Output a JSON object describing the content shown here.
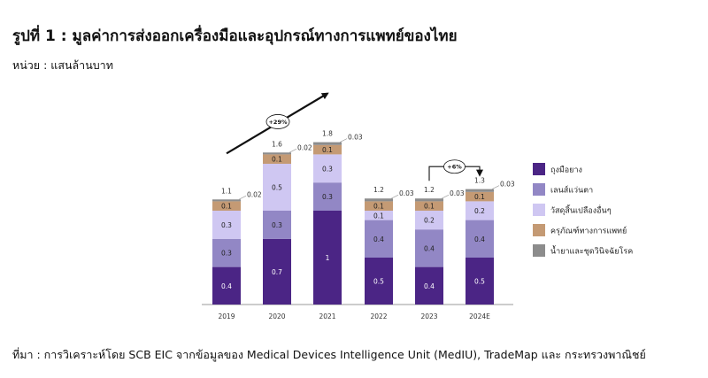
{
  "title": "รูปที่ 1 : มูลค่าการส่งออกเครื่องมือและอุปกรณ์ทางการแพทย์ของไทย",
  "unit_label": "หน่วย : แสนล้านบาท",
  "source": "ที่มา : การวิเคราะห์โดย SCB EIC จากข้อมูลของ Medical Devices Intelligence Unit (MedIU), TradeMap และ กระทรวงพาณิชย์",
  "chart_data": {
    "type": "bar",
    "stacked": true,
    "categories": [
      "2019",
      "2020",
      "2021",
      "2022",
      "2023",
      "2024E"
    ],
    "totals": [
      "1.1",
      "1.6",
      "1.8",
      "1.2",
      "1.2",
      "1.3"
    ],
    "series": [
      {
        "name": "ถุงมือยาง",
        "color": "#4b2585",
        "values": [
          0.4,
          0.7,
          1.0,
          0.5,
          0.4,
          0.5
        ]
      },
      {
        "name": "เลนส์แว่นตา",
        "color": "#9287c5",
        "values": [
          0.3,
          0.3,
          0.3,
          0.4,
          0.4,
          0.4
        ]
      },
      {
        "name": "วัสดุสิ้นเปลืองอื่นๆ",
        "color": "#cfc7f2",
        "values": [
          0.3,
          0.5,
          0.3,
          0.1,
          0.2,
          0.2
        ]
      },
      {
        "name": "ครุภัณฑ์ทางการแพทย์",
        "color": "#c49a74",
        "values": [
          0.1,
          0.1,
          0.1,
          0.1,
          0.1,
          0.1
        ]
      },
      {
        "name": "น้ำยาและชุดวินิจฉัยโรค",
        "color": "#8c8c8c",
        "values": [
          0.02,
          0.02,
          0.03,
          0.03,
          0.03,
          0.03
        ]
      }
    ],
    "annotations": [
      {
        "label": "+29%",
        "from": "2019",
        "to": "2021"
      },
      {
        "label": "+6%",
        "from": "2023",
        "to": "2024E"
      }
    ],
    "legend_position": "right",
    "grid": false
  }
}
